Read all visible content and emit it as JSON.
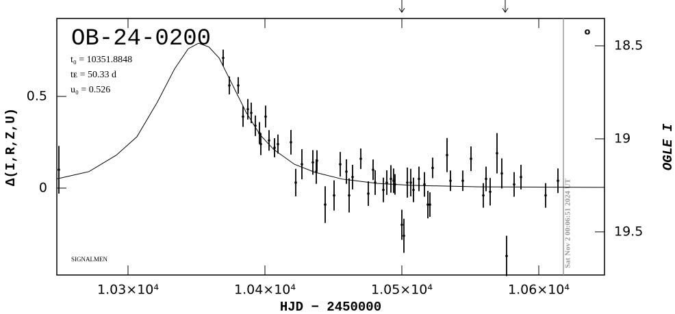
{
  "chart_data": {
    "type": "scatter",
    "title": "OB-24-0200",
    "parameters": [
      "t₀ = 10351.8848",
      "tᴇ = 50.33 d",
      "u₀ = 0.526"
    ],
    "x_label": "HJD − 2450000",
    "y_label": "Δ(I,R,Z,U)",
    "y2_label": "OGLE I",
    "footnote": "SIGNALMEN",
    "timestamp": "Sat Nov  2 00:06:51 2024 UT",
    "symbol": "o",
    "xlim": [
      10248,
      10648
    ],
    "ylim": [
      -0.474,
      0.925
    ],
    "y2lim": [
      19.732,
      18.353
    ],
    "xticks": [
      {
        "value": 10300,
        "label": "1.03×10⁴"
      },
      {
        "value": 10400,
        "label": "1.04×10⁴"
      },
      {
        "value": 10500,
        "label": "1.05×10⁴"
      },
      {
        "value": 10600,
        "label": "1.06×10⁴"
      }
    ],
    "yticks": [
      0,
      0.5
    ],
    "y2ticks": [
      18.5,
      19,
      19.5
    ],
    "arrows": [
      10500,
      10575.5
    ],
    "now_line": 10618,
    "color": "#000000",
    "points": {
      "x": [
        10249.5,
        10369.5,
        10374,
        10380.5,
        10384,
        10387.5,
        10390,
        10393,
        10396,
        10397,
        10400.5,
        10403,
        10407,
        10409.5,
        10419,
        10422.5,
        10427,
        10435,
        10437.5,
        10438,
        10444,
        10450.5,
        10455,
        10459.5,
        10461.5,
        10464,
        10470,
        10475.5,
        10479,
        10480.5,
        10486.5,
        10489,
        10492,
        10494,
        10495,
        10500,
        10501.5,
        10504,
        10506.5,
        10508.5,
        10512.5,
        10516.5,
        10519,
        10520.5,
        10522.5,
        10533,
        10535.5,
        10544.5,
        10550.5,
        10559.5,
        10561.5,
        10564.5,
        10569.5,
        10573,
        10576.5,
        10582,
        10587,
        10605,
        10614
      ],
      "values": [
        0.1,
        0.71,
        0.56,
        0.56,
        0.39,
        0.43,
        0.41,
        0.34,
        0.3,
        0.24,
        0.39,
        0.26,
        0.22,
        0.24,
        0.25,
        0.03,
        0.13,
        0.14,
        0.09,
        0.15,
        -0.09,
        -0.04,
        0.13,
        0.09,
        -0.04,
        0.06,
        0.16,
        -0.03,
        0.1,
        0.03,
        -0.01,
        0.03,
        0.05,
        0.04,
        0.02,
        -0.2,
        -0.26,
        0.03,
        0.03,
        -0.01,
        0.05,
        0.02,
        -0.09,
        -0.09,
        0.11,
        0.18,
        0.04,
        0.04,
        0.16,
        -0.04,
        0.05,
        -0.02,
        0.19,
        0.08,
        -0.37,
        0.02,
        0.06,
        -0.04,
        0.04
      ],
      "errors": [
        0.13,
        0.045,
        0.049,
        0.045,
        0.056,
        0.056,
        0.056,
        0.056,
        0.06,
        0.06,
        0.06,
        0.056,
        0.052,
        0.052,
        0.067,
        0.075,
        0.082,
        0.067,
        0.067,
        0.056,
        0.1,
        0.082,
        0.067,
        0.067,
        0.093,
        0.067,
        0.056,
        0.067,
        0.056,
        0.067,
        0.067,
        0.067,
        0.075,
        0.067,
        0.056,
        0.082,
        0.093,
        0.082,
        0.075,
        0.067,
        0.067,
        0.067,
        0.075,
        0.067,
        0.056,
        0.093,
        0.056,
        0.056,
        0.067,
        0.067,
        0.067,
        0.075,
        0.11,
        0.082,
        0.11,
        0.067,
        0.067,
        0.067,
        0.067
      ]
    },
    "model": {
      "x": [
        10248,
        10271.5,
        10291.5,
        10306.5,
        10321.5,
        10334,
        10344,
        10351.5,
        10359,
        10366.5,
        10376.5,
        10386.5,
        10396.5,
        10406.5,
        10421.5,
        10436.5,
        10456.5,
        10481.5,
        10506.5,
        10556.5,
        10648
      ],
      "values": [
        0.05,
        0.09,
        0.18,
        0.28,
        0.47,
        0.65,
        0.76,
        0.79,
        0.77,
        0.71,
        0.56,
        0.41,
        0.29,
        0.21,
        0.13,
        0.086,
        0.049,
        0.026,
        0.015,
        0.007,
        0.004
      ]
    }
  }
}
